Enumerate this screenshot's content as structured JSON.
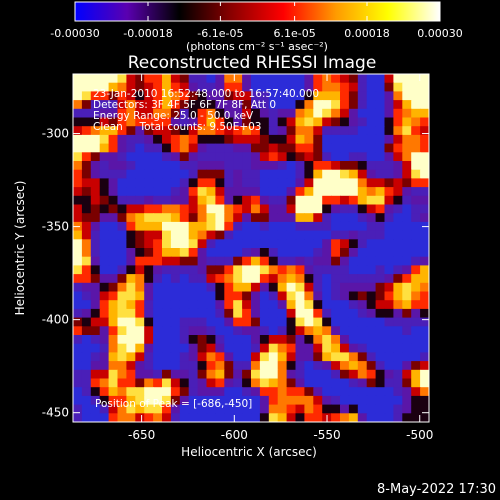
{
  "colorbar": {
    "ticks": [
      "-0.00030",
      "-0.00018",
      "-6.1e-05",
      "6.1e-05",
      "0.00018",
      "0.00030"
    ],
    "tick_values": [
      -0.0003,
      -0.00018,
      -6.1e-05,
      6.1e-05,
      0.00018,
      0.0003
    ],
    "range": [
      -0.0003,
      0.0003
    ],
    "units": "(photons cm⁻² s⁻¹ asec⁻²)",
    "stops": [
      "#0000ff",
      "#5a00b0",
      "#000000",
      "#8a0000",
      "#ff0000",
      "#ff9a00",
      "#ffff00",
      "#ffffff"
    ]
  },
  "plot": {
    "title": "Reconstructed RHESSI Image",
    "info": [
      "23-Jan-2010 16:52:48.000 to 16:57:40.000",
      "Detectors: 3F 4F 5F 6F 7F 8F, Att 0",
      "Energy Range: 25.0 - 50.0 keV",
      "Clean     Total counts: 9.50E+03"
    ],
    "peak_label": "Position of Peak = [-686,-450]",
    "xlabel": "Heliocentric X (arcsec)",
    "ylabel": "Heliocentric Y (arcsec)",
    "x_range": [
      -687,
      -495
    ],
    "y_range": [
      -455,
      -268
    ],
    "x_ticks": [
      -650,
      -600,
      -550,
      -500
    ],
    "y_ticks": [
      -300,
      -350,
      -400,
      -450
    ],
    "x_tick_labels": [
      "-650",
      "-600",
      "-550",
      "-500"
    ],
    "y_tick_labels": [
      "-300",
      "-350",
      "-400",
      "-450"
    ]
  },
  "footer": {
    "timestamp": "8-May-2022 17:30"
  }
}
